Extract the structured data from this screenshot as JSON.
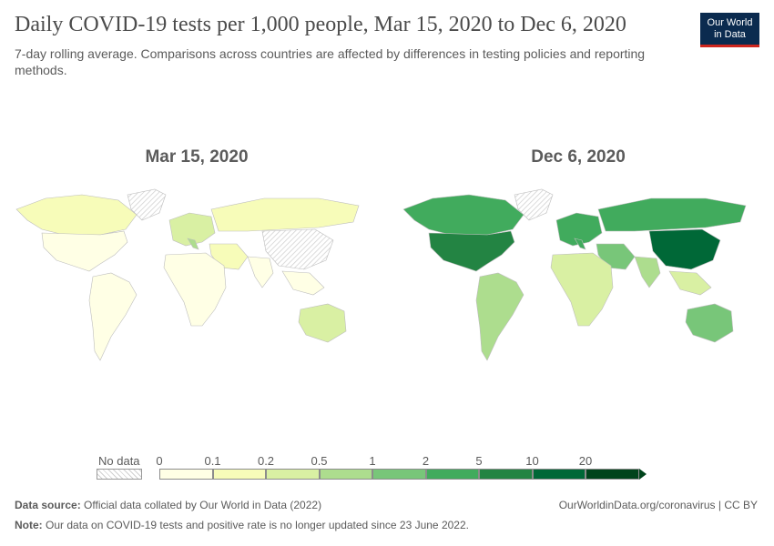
{
  "header": {
    "title": "Daily COVID-19 tests per 1,000 people, Mar 15, 2020 to Dec 6, 2020",
    "subtitle": "7-day rolling average. Comparisons across countries are affected by differences in testing policies and reporting methods.",
    "logo_line1": "Our World",
    "logo_line2": "in Data"
  },
  "maps": {
    "left_title": "Mar 15, 2020",
    "right_title": "Dec 6, 2020"
  },
  "legend": {
    "no_data_label": "No data",
    "ticks": [
      "0",
      "0.1",
      "0.2",
      "0.5",
      "1",
      "2",
      "5",
      "10",
      "20"
    ],
    "bin_colors": [
      "#ffffe5",
      "#f7fcb9",
      "#d9f0a3",
      "#addd8e",
      "#78c679",
      "#41ab5d",
      "#238443",
      "#006837",
      "#00441b"
    ],
    "no_data_color": "#e0e0e0"
  },
  "chart_data": {
    "type": "choropleth",
    "title": "Daily COVID-19 tests per 1,000 people, Mar 15, 2020 to Dec 6, 2020",
    "subtitle": "7-day rolling average",
    "scale_breaks": [
      0,
      0.1,
      0.2,
      0.5,
      1,
      2,
      5,
      10,
      20
    ],
    "panels": [
      {
        "date": "Mar 15, 2020",
        "values": {
          "North America": 0.05,
          "Canada": 0.1,
          "Greenland": null,
          "South America": 0.05,
          "Europe": 0.3,
          "Italy": 0.6,
          "Africa": 0.02,
          "Russia": 0.1,
          "Middle East": 0.1,
          "China": null,
          "India": 0.01,
          "Southeast Asia": 0.05,
          "Australia": 0.3
        }
      },
      {
        "date": "Dec 6, 2020",
        "values": {
          "North America": 5,
          "Canada": 2,
          "Greenland": null,
          "South America": 0.8,
          "Europe": 3,
          "Italy": 3,
          "Africa": 0.2,
          "Russia": 2.5,
          "Middle East": 1,
          "China": 12,
          "India": 0.8,
          "Southeast Asia": 0.3,
          "Australia": 1.5
        }
      }
    ]
  },
  "footer": {
    "source_label": "Data source:",
    "source_text": "Official data collated by Our World in Data (2022)",
    "url_text": "OurWorldinData.org/coronavirus | CC BY",
    "note_label": "Note:",
    "note_text": "Our data on COVID-19 tests and positive rate is no longer updated since 23 June 2022."
  }
}
